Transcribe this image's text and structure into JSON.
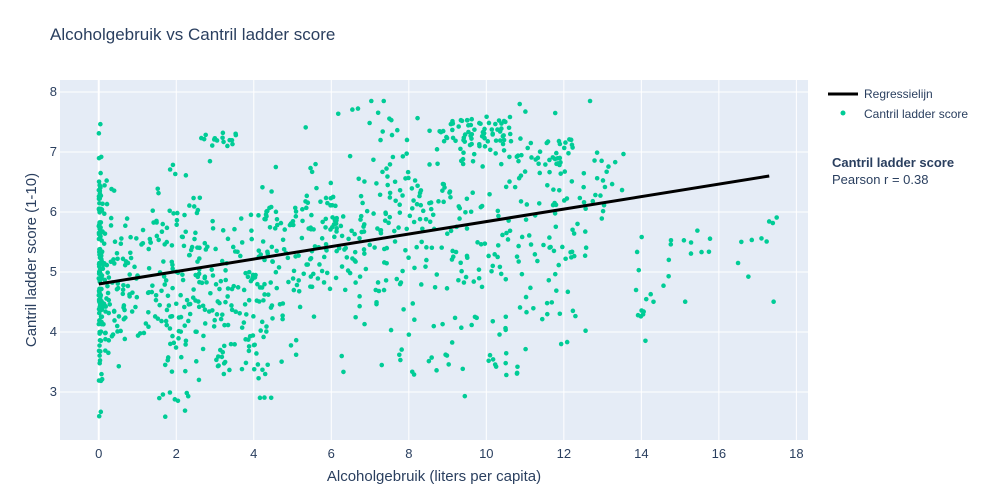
{
  "chart_data": {
    "type": "scatter",
    "title": "Alcoholgebruik vs Cantril ladder score",
    "xlabel": "Alcoholgebruik (liters per capita)",
    "ylabel": "Cantril ladder score (1-10)",
    "xlim": [
      -1,
      18.3
    ],
    "ylim": [
      2.2,
      8.2
    ],
    "xticks": [
      0,
      2,
      4,
      6,
      8,
      10,
      12,
      14,
      16,
      18
    ],
    "yticks": [
      3,
      4,
      5,
      6,
      7,
      8
    ],
    "grid": true,
    "legend_position": "top-right",
    "series": [
      {
        "name": "Regressielijn",
        "kind": "line",
        "color": "#000000",
        "points": [
          [
            0,
            4.8
          ],
          [
            17.3,
            6.6
          ]
        ]
      },
      {
        "name": "Cantril ladder score",
        "kind": "markers",
        "color": "#00cc96",
        "clusters": [
          [
            0,
            0.08,
            5.0,
            0.85,
            95,
            11
          ],
          [
            0.3,
            0.4,
            4.5,
            0.55,
            70,
            12
          ],
          [
            0.2,
            0.25,
            6.1,
            0.35,
            12,
            13
          ],
          [
            1.2,
            0.9,
            4.8,
            0.55,
            75,
            14
          ],
          [
            2.0,
            0.45,
            4.3,
            0.8,
            60,
            15
          ],
          [
            2.2,
            0.5,
            5.8,
            0.55,
            35,
            16
          ],
          [
            3.2,
            0.3,
            7.2,
            0.06,
            16,
            17
          ],
          [
            3.1,
            0.7,
            4.4,
            0.5,
            55,
            18
          ],
          [
            3.5,
            0.5,
            3.6,
            0.2,
            15,
            19
          ],
          [
            4.2,
            0.6,
            4.6,
            0.7,
            70,
            20
          ],
          [
            4.2,
            0.3,
            6.0,
            0.25,
            15,
            21
          ],
          [
            5.2,
            0.7,
            5.3,
            0.65,
            65,
            22
          ],
          [
            6.4,
            0.8,
            5.8,
            0.5,
            75,
            23
          ],
          [
            7.2,
            0.7,
            7.5,
            0.12,
            12,
            24
          ],
          [
            8.2,
            0.7,
            6.2,
            0.55,
            70,
            25
          ],
          [
            7.8,
            1.0,
            4.7,
            0.8,
            55,
            26
          ],
          [
            9.5,
            0.35,
            7.3,
            0.2,
            45,
            27
          ],
          [
            10.1,
            0.5,
            7.35,
            0.2,
            30,
            28
          ],
          [
            10.2,
            0.9,
            5.3,
            0.75,
            60,
            29
          ],
          [
            11.5,
            0.6,
            6.9,
            0.2,
            40,
            30
          ],
          [
            11.3,
            0.8,
            5.6,
            0.6,
            45,
            31
          ],
          [
            12.3,
            0.6,
            6.3,
            0.7,
            20,
            32
          ],
          [
            13.1,
            0.15,
            6.5,
            0.35,
            12,
            33
          ],
          [
            13.8,
            0.9,
            4.6,
            0.55,
            12,
            34
          ],
          [
            15.0,
            0.8,
            5.5,
            0.15,
            10,
            35
          ],
          [
            17.0,
            0.3,
            5.6,
            0.4,
            10,
            36
          ],
          [
            11.0,
            0.8,
            4.2,
            0.4,
            15,
            37
          ],
          [
            8.6,
            0.8,
            3.5,
            0.15,
            10,
            38
          ],
          [
            4.3,
            0.15,
            2.9,
            0.02,
            3,
            39
          ],
          [
            1.9,
            0.2,
            2.9,
            0.15,
            5,
            40
          ],
          [
            0.0,
            0.03,
            2.6,
            0.05,
            1,
            41
          ],
          [
            10.5,
            0.3,
            3.3,
            0.06,
            5,
            42
          ],
          [
            14.0,
            0.05,
            4.3,
            0.03,
            5,
            43
          ]
        ]
      }
    ],
    "annotation": {
      "title": "Cantril ladder score",
      "text": "Pearson r = 0.38"
    }
  }
}
